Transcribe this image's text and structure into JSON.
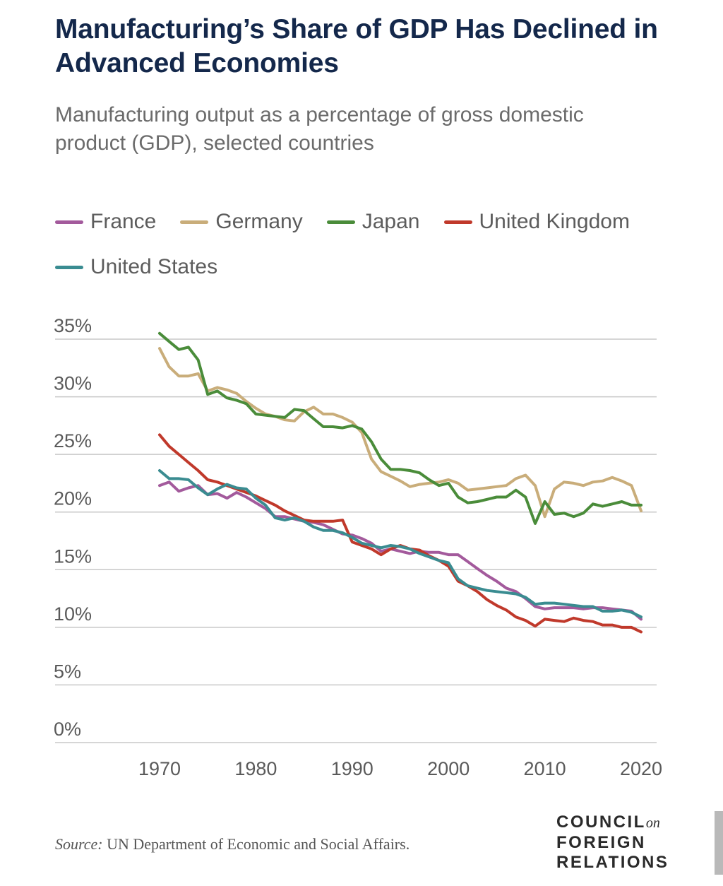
{
  "title": "Manufacturing’s Share of GDP Has Declined in Advanced Economies",
  "subtitle": "Manufacturing output as a percentage of gross domestic product (GDP), selected countries",
  "source": {
    "label": "Source:",
    "text": "UN Department of Economic and Social Affairs."
  },
  "logo": {
    "line1": "COUNCIL",
    "on": "on",
    "line2": "FOREIGN",
    "line3": "RELATIONS"
  },
  "colors": {
    "title": "#14284b",
    "France": "#a35a9c",
    "Germany": "#c9ad7a",
    "Japan": "#4a8c3a",
    "United Kingdom": "#c0392b",
    "United States": "#3a8c91",
    "grid": "#c8c8c8",
    "axis_text": "#5a5a5a"
  },
  "chart_data": {
    "type": "line",
    "title": "Manufacturing’s Share of GDP Has Declined in Advanced Economies",
    "xlabel": "",
    "ylabel": "",
    "ylim": [
      0,
      35
    ],
    "xlim": [
      1970,
      2020
    ],
    "yticks": [
      0,
      5,
      10,
      15,
      20,
      25,
      30,
      35
    ],
    "ytick_labels": [
      "0%",
      "5%",
      "10%",
      "15%",
      "20%",
      "25%",
      "30%",
      "35%"
    ],
    "xticks": [
      1970,
      1980,
      1990,
      2000,
      2010,
      2020
    ],
    "xtick_labels": [
      "1970",
      "1980",
      "1990",
      "2000",
      "2010",
      "2020"
    ],
    "legend_position": "top",
    "x": [
      1970,
      1971,
      1972,
      1973,
      1974,
      1975,
      1976,
      1977,
      1978,
      1979,
      1980,
      1981,
      1982,
      1983,
      1984,
      1985,
      1986,
      1987,
      1988,
      1989,
      1990,
      1991,
      1992,
      1993,
      1994,
      1995,
      1996,
      1997,
      1998,
      1999,
      2000,
      2001,
      2002,
      2003,
      2004,
      2005,
      2006,
      2007,
      2008,
      2009,
      2010,
      2011,
      2012,
      2013,
      2014,
      2015,
      2016,
      2017,
      2018,
      2019,
      2020
    ],
    "series": [
      {
        "name": "France",
        "values": [
          22.3,
          22.6,
          21.8,
          22.1,
          22.3,
          21.5,
          21.6,
          21.2,
          21.7,
          21.3,
          20.8,
          20.3,
          19.6,
          19.6,
          19.4,
          19.2,
          19.1,
          18.9,
          18.5,
          18.1,
          18.0,
          17.7,
          17.3,
          16.6,
          16.8,
          16.6,
          16.4,
          16.6,
          16.5,
          16.5,
          16.3,
          16.3,
          15.7,
          15.1,
          14.5,
          14.0,
          13.4,
          13.1,
          12.5,
          11.8,
          11.6,
          11.7,
          11.7,
          11.7,
          11.6,
          11.7,
          11.7,
          11.6,
          11.5,
          11.4,
          10.7
        ]
      },
      {
        "name": "Germany",
        "values": [
          34.2,
          32.6,
          31.8,
          31.8,
          32.0,
          30.5,
          30.8,
          30.6,
          30.3,
          29.6,
          29.0,
          28.5,
          28.3,
          28.0,
          27.9,
          28.7,
          29.1,
          28.5,
          28.5,
          28.2,
          27.8,
          26.9,
          24.6,
          23.5,
          23.1,
          22.7,
          22.2,
          22.4,
          22.5,
          22.6,
          22.8,
          22.5,
          21.9,
          22.0,
          22.1,
          22.2,
          22.3,
          22.9,
          23.2,
          22.3,
          19.6,
          22.0,
          22.6,
          22.5,
          22.3,
          22.6,
          22.7,
          23.0,
          22.7,
          22.3,
          20.1
        ]
      },
      {
        "name": "Japan",
        "values": [
          35.5,
          34.8,
          34.1,
          34.3,
          33.2,
          30.2,
          30.5,
          29.9,
          29.7,
          29.4,
          28.5,
          28.4,
          28.3,
          28.2,
          28.9,
          28.8,
          28.1,
          27.4,
          27.4,
          27.3,
          27.5,
          27.2,
          26.1,
          24.6,
          23.7,
          23.7,
          23.6,
          23.4,
          22.8,
          22.3,
          22.5,
          21.3,
          20.8,
          20.9,
          21.1,
          21.3,
          21.3,
          21.9,
          21.3,
          19.0,
          20.9,
          19.8,
          19.9,
          19.6,
          19.9,
          20.7,
          20.5,
          20.7,
          20.9,
          20.6,
          20.6
        ]
      },
      {
        "name": "United Kingdom",
        "values": [
          26.7,
          25.7,
          25.0,
          24.3,
          23.6,
          22.8,
          22.6,
          22.3,
          22.0,
          21.7,
          21.4,
          21.0,
          20.6,
          20.1,
          19.7,
          19.3,
          19.2,
          19.2,
          19.2,
          19.3,
          17.4,
          17.1,
          16.8,
          16.3,
          16.8,
          17.1,
          16.8,
          16.7,
          16.2,
          15.8,
          15.3,
          14.0,
          13.6,
          13.1,
          12.4,
          11.9,
          11.5,
          10.9,
          10.6,
          10.1,
          10.7,
          10.6,
          10.5,
          10.8,
          10.6,
          10.5,
          10.2,
          10.2,
          10.0,
          10.0,
          9.6
        ]
      },
      {
        "name": "United States",
        "values": [
          23.6,
          22.9,
          22.9,
          22.8,
          22.1,
          21.5,
          22.0,
          22.4,
          22.1,
          22.0,
          21.2,
          20.6,
          19.5,
          19.3,
          19.5,
          19.2,
          18.7,
          18.4,
          18.4,
          18.2,
          17.8,
          17.3,
          17.1,
          16.9,
          17.1,
          17.0,
          16.8,
          16.4,
          16.1,
          15.8,
          15.6,
          14.2,
          13.6,
          13.4,
          13.2,
          13.1,
          13.0,
          12.9,
          12.6,
          12.0,
          12.1,
          12.1,
          12.0,
          11.9,
          11.8,
          11.8,
          11.4,
          11.4,
          11.5,
          11.3,
          10.9
        ]
      }
    ]
  }
}
